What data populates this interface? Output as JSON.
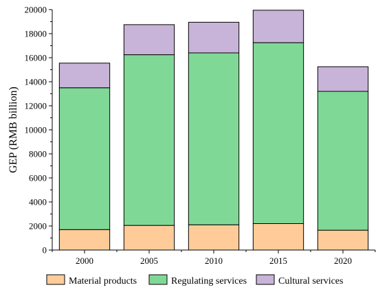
{
  "chart_data": {
    "type": "bar",
    "stacked": true,
    "categories": [
      "2000",
      "2005",
      "2010",
      "2015",
      "2020"
    ],
    "series": [
      {
        "name": "Material products",
        "values": [
          1700,
          2050,
          2100,
          2200,
          1650
        ],
        "color": "#FFCC99"
      },
      {
        "name": "Regulating services",
        "values": [
          11800,
          14200,
          14300,
          15050,
          11550
        ],
        "color": "#80D897"
      },
      {
        "name": "Cultural services",
        "values": [
          2050,
          2500,
          2550,
          2700,
          2050
        ],
        "color": "#C8B4D8"
      }
    ],
    "xlabel": "",
    "ylabel": "GEP (RMB billion)",
    "ylim": [
      0,
      20000
    ],
    "yticks": [
      0,
      2000,
      4000,
      6000,
      8000,
      10000,
      12000,
      14000,
      16000,
      18000,
      20000
    ],
    "grid": false,
    "legend_position": "bottom"
  }
}
